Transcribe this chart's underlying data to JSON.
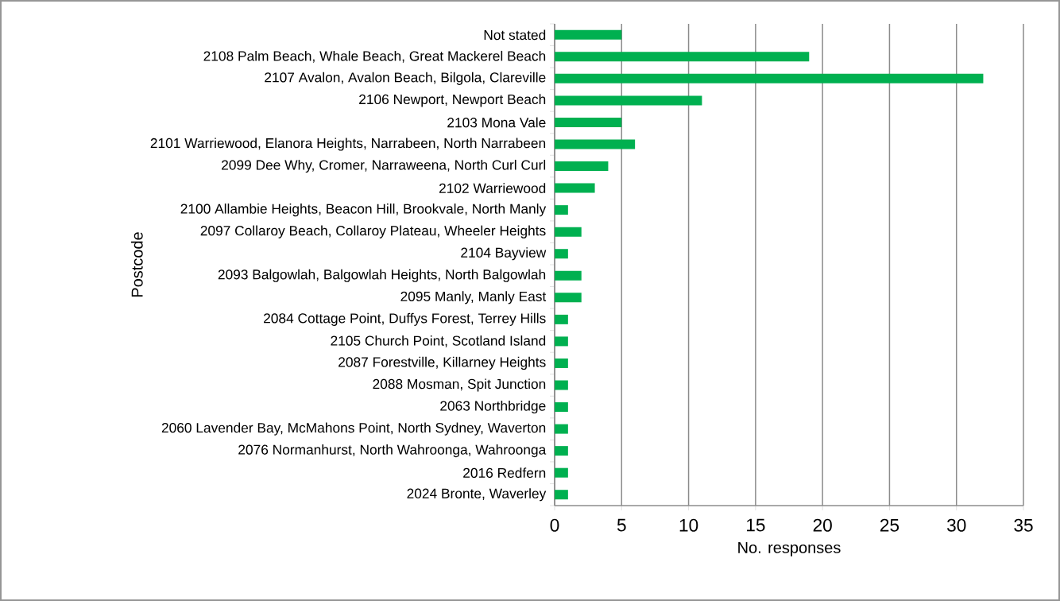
{
  "chart_data": {
    "type": "bar",
    "orientation": "horizontal",
    "xlabel": "No. responses",
    "ylabel": "Postcode",
    "categories": [
      "Not stated",
      "2108  Palm Beach, Whale Beach, Great Mackerel Beach",
      "2107  Avalon, Avalon Beach, Bilgola, Clareville",
      "2106  Newport, Newport Beach",
      "2103  Mona Vale",
      "2101  Warriewood, Elanora Heights, Narrabeen, North Narrabeen",
      "2099  Dee Why, Cromer, Narraweena, North Curl Curl",
      "2102  Warriewood",
      "2100  Allambie Heights, Beacon Hill, Brookvale, North Manly",
      "2097  Collaroy Beach, Collaroy Plateau, Wheeler Heights",
      "2104  Bayview",
      "2093  Balgowlah, Balgowlah Heights, North Balgowlah",
      "2095  Manly, Manly East",
      "2084  Cottage Point, Duffys Forest, Terrey Hills",
      "2105  Church Point, Scotland Island",
      "2087  Forestville, Killarney Heights",
      "2088  Mosman, Spit Junction",
      "2063  Northbridge",
      "2060  Lavender Bay, McMahons Point, North Sydney, Waverton",
      "2076  Normanhurst, North Wahroonga, Wahroonga",
      "2016  Redfern",
      "2024  Bronte, Waverley"
    ],
    "values": [
      5,
      19,
      32,
      11,
      5,
      6,
      4,
      3,
      1,
      2,
      1,
      2,
      2,
      1,
      1,
      1,
      1,
      1,
      1,
      1,
      1,
      1
    ],
    "color": "#00b050",
    "xlim": [
      0,
      35
    ],
    "xticks": [
      0,
      5,
      10,
      15,
      20,
      25,
      30,
      35
    ],
    "grid": "x"
  }
}
